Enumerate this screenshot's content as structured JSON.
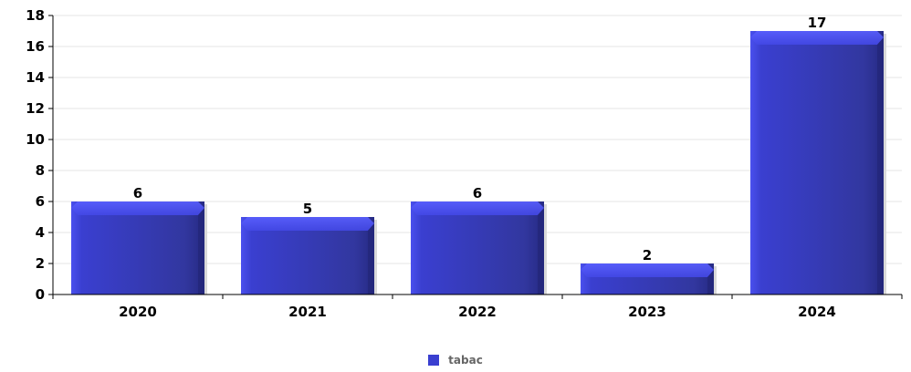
{
  "chart_data": {
    "type": "bar",
    "categories": [
      "2020",
      "2021",
      "2022",
      "2023",
      "2024"
    ],
    "series": [
      {
        "name": "tabac",
        "values": [
          6,
          5,
          6,
          2,
          17
        ],
        "color": "#3a3fd0"
      }
    ],
    "ylim": [
      0,
      18
    ],
    "yticks": [
      0,
      2,
      4,
      6,
      8,
      10,
      12,
      14,
      16,
      18
    ],
    "grid": true,
    "legend": "bottom-center",
    "title": "",
    "xlabel": "",
    "ylabel": ""
  }
}
